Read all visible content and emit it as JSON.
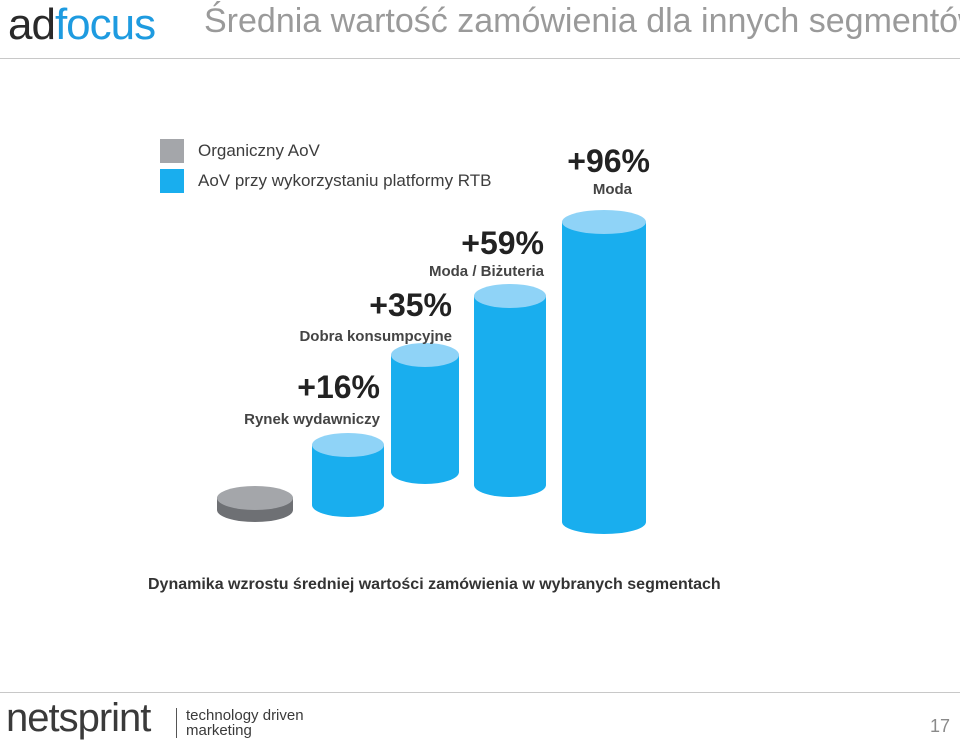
{
  "header": {
    "logo_ad": "ad",
    "logo_focus": "focus",
    "title": "Średnia wartość zamówienia dla innych segmentów"
  },
  "legend": [
    {
      "label": "Organiczny AoV",
      "color": "#a4a6aa"
    },
    {
      "label": "AoV przy wykorzystaniu platformy RTB",
      "color": "#19aeee"
    }
  ],
  "chart_data": {
    "type": "bar",
    "title": "Dynamika wzrostu średniej wartości zamówienia w wybranych segmentach",
    "categories": [
      "Organiczny AoV",
      "Rynek wydawniczy",
      "Dobra konsumpcyjne",
      "Moda / Biżuteria",
      "Moda"
    ],
    "values": [
      0,
      16,
      35,
      59,
      96
    ],
    "data_labels": [
      "",
      "+16%",
      "+35%",
      "+59%",
      "+96%"
    ],
    "colors": [
      "#a4a6aa",
      "#19aeee",
      "#19aeee",
      "#19aeee",
      "#19aeee"
    ],
    "xlabel": "",
    "ylabel": "",
    "ylim": [
      0,
      100
    ]
  },
  "footer": {
    "brand": "netsprint",
    "tagline_line1": "technology driven",
    "tagline_line2": "marketing",
    "page_number": "17"
  }
}
